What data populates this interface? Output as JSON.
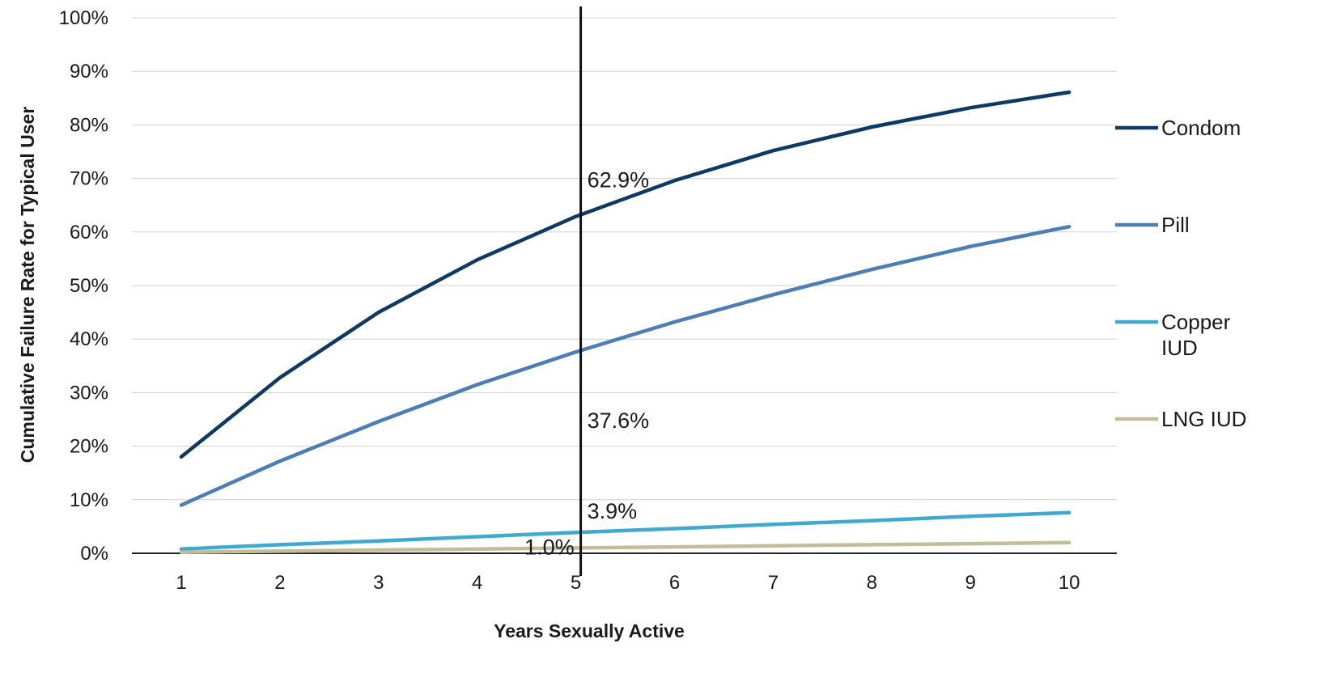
{
  "chart_data": {
    "type": "line",
    "xlabel": "Years Sexually Active",
    "ylabel": "Cumulative Failure Rate for Typical User",
    "x": [
      1,
      2,
      3,
      4,
      5,
      6,
      7,
      8,
      9,
      10
    ],
    "ylim": [
      0,
      100
    ],
    "y_ticks": [
      "0%",
      "10%",
      "20%",
      "30%",
      "40%",
      "50%",
      "60%",
      "70%",
      "80%",
      "90%",
      "100%"
    ],
    "x_ticks": [
      "1",
      "2",
      "3",
      "4",
      "5",
      "6",
      "7",
      "8",
      "9",
      "10"
    ],
    "grid": "horizontal",
    "legend_position": "right",
    "series": [
      {
        "name": "Condom",
        "color": "#0d3a63",
        "values": [
          18,
          32.8,
          45,
          54.8,
          62.9,
          69.6,
          75.2,
          79.6,
          83.2,
          86.1
        ]
      },
      {
        "name": "Pill",
        "color": "#4a7eb5",
        "values": [
          9,
          17.2,
          24.6,
          31.5,
          37.6,
          43.2,
          48.3,
          53,
          57.3,
          61
        ]
      },
      {
        "name": "Copper IUD",
        "name_lines": [
          "Copper",
          "IUD"
        ],
        "color": "#3fa9d0",
        "values": [
          0.8,
          1.6,
          2.3,
          3.1,
          3.9,
          4.6,
          5.4,
          6.1,
          6.9,
          7.6
        ]
      },
      {
        "name": "LNG IUD",
        "color": "#c2bc98",
        "values": [
          0.2,
          0.4,
          0.6,
          0.8,
          1.0,
          1.2,
          1.4,
          1.6,
          1.8,
          2.0
        ]
      }
    ],
    "reference_line": {
      "x": 5,
      "color": "#111111"
    },
    "annotations": [
      {
        "series": "Condom",
        "text": "62.9%"
      },
      {
        "series": "Pill",
        "text": "37.6%"
      },
      {
        "series": "Copper IUD",
        "text": "3.9%"
      },
      {
        "series": "LNG IUD",
        "text": "1.0%"
      }
    ]
  }
}
